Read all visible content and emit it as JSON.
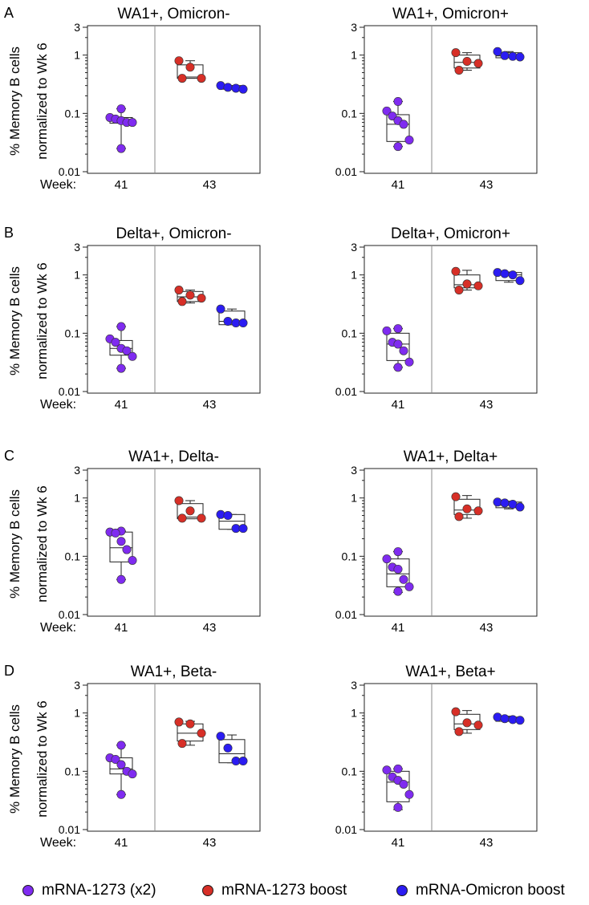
{
  "figure": {
    "week_label": "Week:",
    "ylabel_line1": "% Memory B cells",
    "ylabel_line2": "normalized to Wk 6",
    "colors": {
      "mrna_1273_x2": "#7f2bf0",
      "mrna_1273_boost": "#d72f27",
      "mrna_omicron_boost": "#2b1cf2"
    }
  },
  "legend": {
    "items": [
      {
        "label": "mRNA-1273 (x2)",
        "color": "#7f2bf0"
      },
      {
        "label": "mRNA-1273 boost",
        "color": "#d72f27"
      },
      {
        "label": "mRNA-Omicron boost",
        "color": "#2b1cf2"
      }
    ]
  },
  "chart_data": [
    {
      "type": "box",
      "panel": "A",
      "title": "WA1+, Omicron-",
      "yscale": "log",
      "ylim": [
        0.01,
        3
      ],
      "yticks": [
        "0.01",
        "0.1",
        "1",
        "3"
      ],
      "x_categories": [
        "41",
        "43"
      ],
      "xlabel": "Week:",
      "ylabel": "% Memory B cells normalized to Wk 6",
      "series": [
        {
          "name": "mRNA-1273 (x2)",
          "week": "41",
          "values": [
            0.12,
            0.085,
            0.08,
            0.075,
            0.07,
            0.07,
            0.025
          ],
          "box": {
            "min": 0.025,
            "q1": 0.068,
            "median": 0.075,
            "q3": 0.085,
            "max": 0.12
          }
        },
        {
          "name": "mRNA-1273 boost",
          "week": "43",
          "values": [
            0.8,
            0.62,
            0.4,
            0.4
          ],
          "box": {
            "min": 0.4,
            "q1": 0.4,
            "median": 0.42,
            "q3": 0.68,
            "max": 0.8
          }
        },
        {
          "name": "mRNA-Omicron boost",
          "week": "43",
          "values": [
            0.3,
            0.28,
            0.27,
            0.26
          ],
          "box": {
            "min": 0.26,
            "q1": 0.26,
            "median": 0.27,
            "q3": 0.3,
            "max": 0.3
          }
        }
      ]
    },
    {
      "type": "box",
      "panel": "",
      "title": "WA1+, Omicron+",
      "yscale": "log",
      "ylim": [
        0.01,
        3
      ],
      "yticks": [
        "0.01",
        "0.1",
        "1",
        "3"
      ],
      "x_categories": [
        "41",
        "43"
      ],
      "xlabel": "",
      "ylabel": "",
      "series": [
        {
          "name": "mRNA-1273 (x2)",
          "week": "41",
          "values": [
            0.16,
            0.11,
            0.09,
            0.075,
            0.065,
            0.035,
            0.027
          ],
          "box": {
            "min": 0.027,
            "q1": 0.033,
            "median": 0.065,
            "q3": 0.095,
            "max": 0.16
          }
        },
        {
          "name": "mRNA-1273 boost",
          "week": "43",
          "values": [
            1.1,
            0.78,
            0.72,
            0.55
          ],
          "box": {
            "min": 0.55,
            "q1": 0.6,
            "median": 0.75,
            "q3": 1.0,
            "max": 1.1
          }
        },
        {
          "name": "mRNA-Omicron boost",
          "week": "43",
          "values": [
            1.15,
            0.98,
            0.95,
            0.93
          ],
          "box": {
            "min": 0.9,
            "q1": 0.9,
            "median": 0.97,
            "q3": 1.1,
            "max": 1.15
          }
        }
      ]
    },
    {
      "type": "box",
      "panel": "B",
      "title": "Delta+, Omicron-",
      "yscale": "log",
      "ylim": [
        0.01,
        3
      ],
      "yticks": [
        "0.01",
        "0.1",
        "1",
        "3"
      ],
      "x_categories": [
        "41",
        "43"
      ],
      "xlabel": "Week:",
      "ylabel": "% Memory B cells normalized to Wk 6",
      "series": [
        {
          "name": "mRNA-1273 (x2)",
          "week": "41",
          "values": [
            0.13,
            0.08,
            0.07,
            0.055,
            0.05,
            0.04,
            0.025
          ],
          "box": {
            "min": 0.025,
            "q1": 0.042,
            "median": 0.055,
            "q3": 0.075,
            "max": 0.13
          }
        },
        {
          "name": "mRNA-1273 boost",
          "week": "43",
          "values": [
            0.55,
            0.45,
            0.4,
            0.35
          ],
          "box": {
            "min": 0.33,
            "q1": 0.35,
            "median": 0.42,
            "q3": 0.52,
            "max": 0.55
          }
        },
        {
          "name": "mRNA-Omicron boost",
          "week": "43",
          "values": [
            0.26,
            0.16,
            0.15,
            0.15
          ],
          "box": {
            "min": 0.14,
            "q1": 0.14,
            "median": 0.16,
            "q3": 0.24,
            "max": 0.26
          }
        }
      ]
    },
    {
      "type": "box",
      "panel": "",
      "title": "Delta+, Omicron+",
      "yscale": "log",
      "ylim": [
        0.01,
        3
      ],
      "yticks": [
        "0.01",
        "0.1",
        "1",
        "3"
      ],
      "x_categories": [
        "41",
        "43"
      ],
      "xlabel": "",
      "ylabel": "",
      "series": [
        {
          "name": "mRNA-1273 (x2)",
          "week": "41",
          "values": [
            0.12,
            0.11,
            0.07,
            0.065,
            0.05,
            0.032,
            0.026
          ],
          "box": {
            "min": 0.026,
            "q1": 0.034,
            "median": 0.065,
            "q3": 0.1,
            "max": 0.12
          }
        },
        {
          "name": "mRNA-1273 boost",
          "week": "43",
          "values": [
            1.15,
            0.7,
            0.65,
            0.55
          ],
          "box": {
            "min": 0.55,
            "q1": 0.6,
            "median": 0.68,
            "q3": 1.0,
            "max": 1.2
          }
        },
        {
          "name": "mRNA-Omicron boost",
          "week": "43",
          "values": [
            1.1,
            1.05,
            1.0,
            0.8
          ],
          "box": {
            "min": 0.75,
            "q1": 0.8,
            "median": 1.0,
            "q3": 1.1,
            "max": 1.12
          }
        }
      ]
    },
    {
      "type": "box",
      "panel": "C",
      "title": "WA1+, Delta-",
      "yscale": "log",
      "ylim": [
        0.01,
        3
      ],
      "yticks": [
        "0.01",
        "0.1",
        "1",
        "3"
      ],
      "x_categories": [
        "41",
        "43"
      ],
      "xlabel": "Week:",
      "ylabel": "% Memory B cells normalized to Wk 6",
      "series": [
        {
          "name": "mRNA-1273 (x2)",
          "week": "41",
          "values": [
            0.27,
            0.26,
            0.25,
            0.18,
            0.13,
            0.085,
            0.04
          ],
          "box": {
            "min": 0.04,
            "q1": 0.08,
            "median": 0.14,
            "q3": 0.26,
            "max": 0.27
          }
        },
        {
          "name": "mRNA-1273 boost",
          "week": "43",
          "values": [
            0.9,
            0.6,
            0.45,
            0.45
          ],
          "box": {
            "min": 0.44,
            "q1": 0.44,
            "median": 0.47,
            "q3": 0.8,
            "max": 0.9
          }
        },
        {
          "name": "mRNA-Omicron boost",
          "week": "43",
          "values": [
            0.52,
            0.5,
            0.3,
            0.3
          ],
          "box": {
            "min": 0.29,
            "q1": 0.29,
            "median": 0.4,
            "q3": 0.52,
            "max": 0.52
          }
        }
      ]
    },
    {
      "type": "box",
      "panel": "",
      "title": "WA1+, Delta+",
      "yscale": "log",
      "ylim": [
        0.01,
        3
      ],
      "yticks": [
        "0.01",
        "0.1",
        "1",
        "3"
      ],
      "x_categories": [
        "41",
        "43"
      ],
      "xlabel": "",
      "ylabel": "",
      "series": [
        {
          "name": "mRNA-1273 (x2)",
          "week": "41",
          "values": [
            0.12,
            0.09,
            0.065,
            0.06,
            0.04,
            0.03,
            0.025
          ],
          "box": {
            "min": 0.024,
            "q1": 0.03,
            "median": 0.05,
            "q3": 0.09,
            "max": 0.12
          }
        },
        {
          "name": "mRNA-1273 boost",
          "week": "43",
          "values": [
            1.05,
            0.65,
            0.6,
            0.48
          ],
          "box": {
            "min": 0.45,
            "q1": 0.52,
            "median": 0.62,
            "q3": 0.95,
            "max": 1.1
          }
        },
        {
          "name": "mRNA-Omicron boost",
          "week": "43",
          "values": [
            0.85,
            0.82,
            0.78,
            0.7
          ],
          "box": {
            "min": 0.65,
            "q1": 0.68,
            "median": 0.75,
            "q3": 0.85,
            "max": 0.88
          }
        }
      ]
    },
    {
      "type": "box",
      "panel": "D",
      "title": "WA1+, Beta-",
      "yscale": "log",
      "ylim": [
        0.01,
        3
      ],
      "yticks": [
        "0.01",
        "0.1",
        "1",
        "3"
      ],
      "x_categories": [
        "41",
        "43"
      ],
      "xlabel": "Week:",
      "ylabel": "% Memory B cells normalized to Wk 6",
      "series": [
        {
          "name": "mRNA-1273 (x2)",
          "week": "41",
          "values": [
            0.28,
            0.17,
            0.16,
            0.13,
            0.1,
            0.09,
            0.04
          ],
          "box": {
            "min": 0.04,
            "q1": 0.09,
            "median": 0.11,
            "q3": 0.17,
            "max": 0.28
          }
        },
        {
          "name": "mRNA-1273 boost",
          "week": "43",
          "values": [
            0.7,
            0.65,
            0.45,
            0.3
          ],
          "box": {
            "min": 0.28,
            "q1": 0.33,
            "median": 0.45,
            "q3": 0.65,
            "max": 0.72
          }
        },
        {
          "name": "mRNA-Omicron boost",
          "week": "43",
          "values": [
            0.4,
            0.25,
            0.15,
            0.15
          ],
          "box": {
            "min": 0.14,
            "q1": 0.14,
            "median": 0.2,
            "q3": 0.35,
            "max": 0.42
          }
        }
      ]
    },
    {
      "type": "box",
      "panel": "",
      "title": "WA1+, Beta+",
      "yscale": "log",
      "ylim": [
        0.01,
        3
      ],
      "yticks": [
        "0.01",
        "0.1",
        "1",
        "3"
      ],
      "x_categories": [
        "41",
        "43"
      ],
      "xlabel": "",
      "ylabel": "",
      "series": [
        {
          "name": "mRNA-1273 (x2)",
          "week": "41",
          "values": [
            0.11,
            0.105,
            0.08,
            0.07,
            0.06,
            0.04,
            0.024
          ],
          "box": {
            "min": 0.022,
            "q1": 0.03,
            "median": 0.065,
            "q3": 0.1,
            "max": 0.11
          }
        },
        {
          "name": "mRNA-1273 boost",
          "week": "43",
          "values": [
            1.05,
            0.68,
            0.62,
            0.48
          ],
          "box": {
            "min": 0.45,
            "q1": 0.52,
            "median": 0.65,
            "q3": 0.95,
            "max": 1.1
          }
        },
        {
          "name": "mRNA-Omicron boost",
          "week": "43",
          "values": [
            0.85,
            0.8,
            0.77,
            0.75
          ],
          "box": {
            "min": 0.72,
            "q1": 0.72,
            "median": 0.78,
            "q3": 0.85,
            "max": 0.88
          }
        }
      ]
    }
  ]
}
